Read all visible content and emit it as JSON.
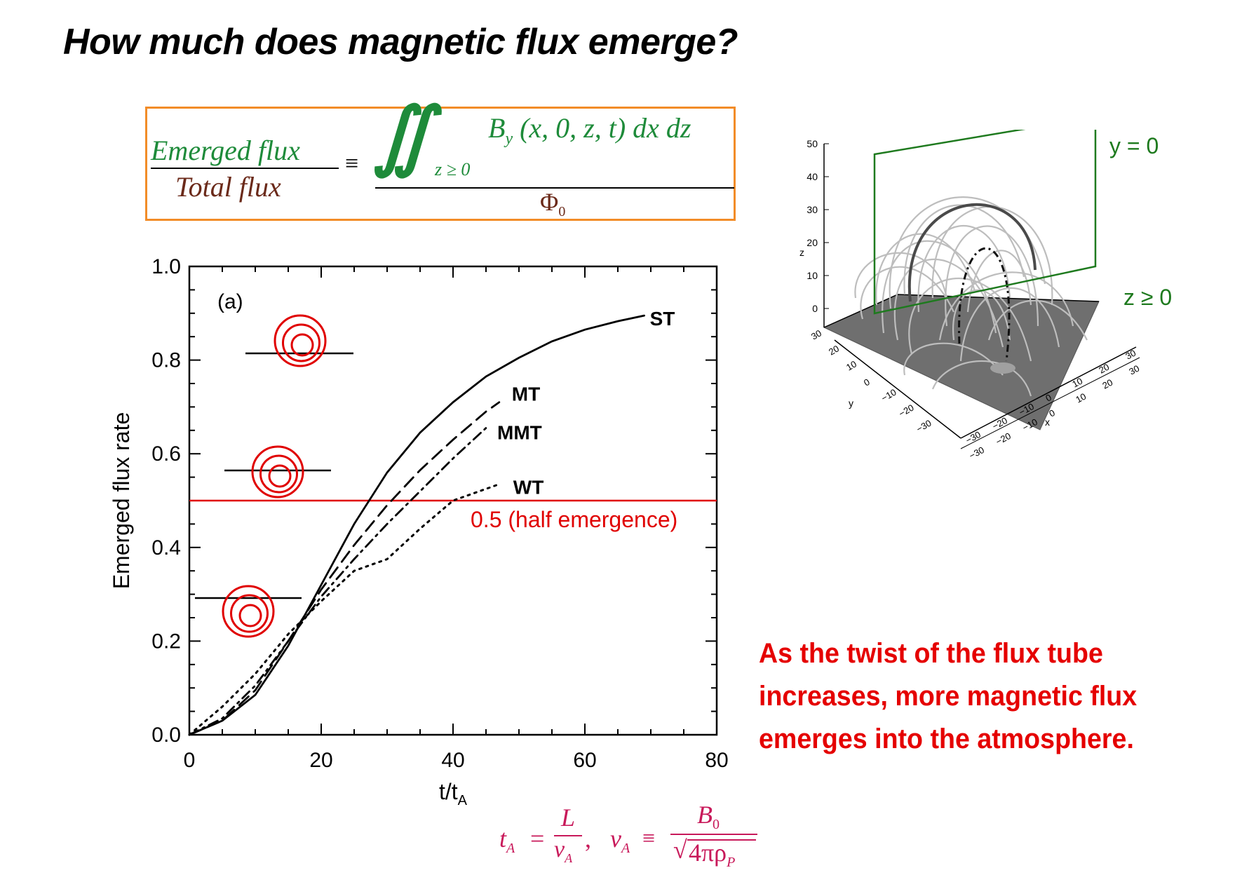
{
  "slide": {
    "title": "How much does magnetic flux emerge?",
    "note": "As the twist of the flux tube increases, more magnetic flux emerges into the atmosphere.",
    "colors": {
      "note": "#e50000",
      "formula_green": "#1e8b3a",
      "formula_brown": "#6b2a1a",
      "box_border": "#f28c28",
      "half_line": "#e00000",
      "ta_formula": "#c8195a"
    }
  },
  "formula": {
    "lhs_numerator": "Emerged flux",
    "lhs_denominator": "Total flux",
    "equiv": "≡",
    "integral_symbol": "∬",
    "integral_limit": "z ≥ 0",
    "integrand": "B",
    "integrand_sub": "y",
    "integrand_args": "(x, 0, z, t) dx dz",
    "rhs_denominator": "Φ",
    "rhs_denominator_sub": "0"
  },
  "ta_formula": {
    "ta": "t",
    "ta_sub": "A",
    "eq": "=",
    "L": "L",
    "vA_den": "v",
    "vA_den_sub": "A",
    "comma": ",",
    "vA": "v",
    "vA_sub": "A",
    "equiv": "≡",
    "B0": "B",
    "B0_sub": "0",
    "sqrt_body": "4πρ",
    "sqrt_sub": "P"
  },
  "chart_data": [
    {
      "type": "line",
      "xlabel": "t/t",
      "xlabel_sub": "A",
      "ylabel": "Emerged flux rate",
      "panel_label": "(a)",
      "xlim": [
        0,
        80
      ],
      "ylim": [
        0.0,
        1.0
      ],
      "x_ticks": [
        "0",
        "20",
        "40",
        "60",
        "80"
      ],
      "y_ticks": [
        "0.0",
        "0.2",
        "0.4",
        "0.6",
        "0.8",
        "1.0"
      ],
      "series": [
        {
          "name": "ST",
          "style": "solid",
          "x": [
            0,
            5,
            10,
            15,
            20,
            25,
            30,
            35,
            40,
            45,
            50,
            55,
            60,
            65,
            69
          ],
          "y": [
            0.0,
            0.03,
            0.085,
            0.19,
            0.32,
            0.45,
            0.56,
            0.645,
            0.71,
            0.765,
            0.805,
            0.84,
            0.865,
            0.883,
            0.895
          ]
        },
        {
          "name": "MT",
          "style": "dash",
          "x": [
            0,
            5,
            10,
            15,
            20,
            25,
            30,
            35,
            40,
            45,
            47
          ],
          "y": [
            0.0,
            0.03,
            0.095,
            0.2,
            0.31,
            0.405,
            0.49,
            0.565,
            0.63,
            0.69,
            0.71
          ]
        },
        {
          "name": "MMT",
          "style": "dashdot",
          "x": [
            0,
            5,
            10,
            15,
            20,
            25,
            30,
            35,
            40,
            45
          ],
          "y": [
            0.0,
            0.035,
            0.105,
            0.2,
            0.295,
            0.375,
            0.45,
            0.52,
            0.59,
            0.655
          ]
        },
        {
          "name": "WT",
          "style": "dot",
          "x": [
            0,
            5,
            10,
            15,
            20,
            25,
            30,
            35,
            40,
            45,
            47
          ],
          "y": [
            0.0,
            0.06,
            0.13,
            0.215,
            0.285,
            0.35,
            0.375,
            0.44,
            0.5,
            0.525,
            0.535
          ]
        }
      ],
      "hline": {
        "y": 0.5,
        "label": "0.5 (half emergence)"
      }
    },
    {
      "type": "scatter",
      "axis_label_z": "z",
      "axis_label_y": "y",
      "axis_label_x": "x",
      "z_ticks": [
        "50",
        "40",
        "30",
        "20",
        "10",
        "0"
      ],
      "x_ticks": [
        "−30",
        "−20",
        "−10",
        "0",
        "10",
        "20",
        "30"
      ],
      "y_ticks": [
        "30",
        "20",
        "10",
        "0",
        "−10",
        "−20",
        "−30"
      ],
      "plane_label_y0": "y = 0",
      "plane_label_z": "z ≥ 0"
    }
  ]
}
